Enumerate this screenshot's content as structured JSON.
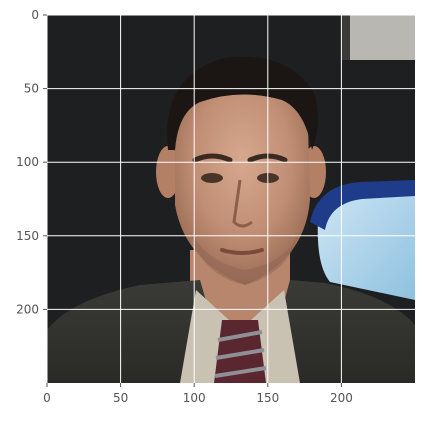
{
  "chart_data": {
    "type": "image",
    "title": "",
    "xlabel": "",
    "ylabel": "",
    "image_size": [
      250,
      250
    ],
    "xlim": [
      0,
      250
    ],
    "ylim": [
      250,
      0
    ],
    "xticks": [
      0,
      50,
      100,
      150,
      200
    ],
    "yticks": [
      0,
      50,
      100,
      150,
      200
    ],
    "xtick_labels": [
      "0",
      "50",
      "100",
      "150",
      "200"
    ],
    "ytick_labels": [
      "0",
      "50",
      "100",
      "150",
      "200"
    ],
    "grid": true,
    "grid_color": "#ffffff",
    "image_content": "photo-portrait",
    "background_color": "#1e1f20"
  }
}
